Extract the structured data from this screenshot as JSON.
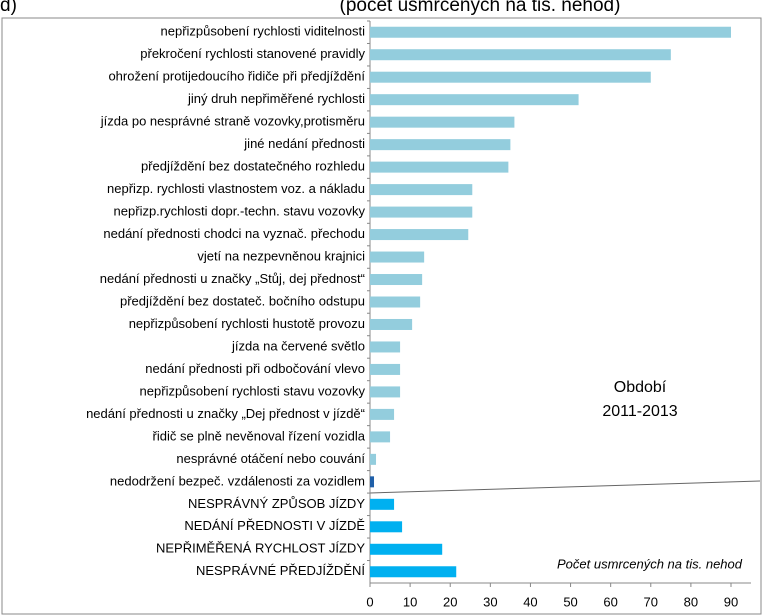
{
  "chart_data": {
    "type": "bar",
    "orientation": "horizontal",
    "title": "(počet usmrcených na tis. nehod)",
    "panel_label": "d)",
    "annotations": [
      "Období",
      "2011-2013",
      "Počet usmrcených na tis. nehod"
    ],
    "categories": [
      "nepřizpůsobení rychlosti viditelnosti",
      "překročení rychlosti stanovené pravidly",
      "ohrožení protijedoucího řidiče při předjíždění",
      "jiný druh nepřiměřené rychlosti",
      "jízda po nesprávné straně vozovky,protisměru",
      "jiné nedání přednosti",
      "předjíždění bez dostatečného rozhledu",
      "nepřizp. rychlosti vlastnostem voz. a nákladu",
      "nepřizp.rychlosti dopr.-techn. stavu vozovky",
      "nedání přednosti chodci na vyznač. přechodu",
      "vjetí na nezpevněnou krajnici",
      "nedání přednosti u značky „Stůj, dej přednost“",
      "předjíždění bez dostateč. bočního odstupu",
      "nepřizpůsobení rychlosti hustotě provozu",
      "jízda na červené světlo",
      "nedání přednosti při odbočování vlevo",
      "nepřizpůsobení rychlosti stavu vozovky",
      "nedání přednosti u značky „Dej přednost v jízdě“",
      "řidič se plně nevěnoval řízení vozidla",
      "nesprávné otáčení nebo couvání",
      "nedodržení bezpeč. vzdálenosti za vozidlem",
      "NESPRÁVNÝ ZPŮSOB JÍZDY",
      "NEDÁNÍ PŘEDNOSTI V JÍZDĚ",
      "NEPŘIMĚŘENÁ RYCHLOST JÍZDY",
      "NESPRÁVNÉ PŘEDJÍŽDĚNÍ"
    ],
    "values": [
      90,
      75,
      70,
      52,
      36,
      35,
      34.5,
      25.5,
      25.5,
      24.5,
      13.5,
      13,
      12.5,
      10.5,
      7.5,
      7.5,
      7.5,
      6,
      5,
      1.5,
      1,
      6,
      8,
      18,
      21.5
    ],
    "colors": [
      "#93cddd",
      "#93cddd",
      "#93cddd",
      "#93cddd",
      "#93cddd",
      "#93cddd",
      "#93cddd",
      "#93cddd",
      "#93cddd",
      "#93cddd",
      "#93cddd",
      "#93cddd",
      "#93cddd",
      "#93cddd",
      "#93cddd",
      "#93cddd",
      "#93cddd",
      "#93cddd",
      "#93cddd",
      "#93cddd",
      "#1f5fa8",
      "#00b0f0",
      "#00b0f0",
      "#00b0f0",
      "#00b0f0"
    ],
    "xlim": [
      0,
      90
    ],
    "xticks": [
      0,
      10,
      20,
      30,
      40,
      50,
      60,
      70,
      80,
      90
    ],
    "grid": false
  }
}
